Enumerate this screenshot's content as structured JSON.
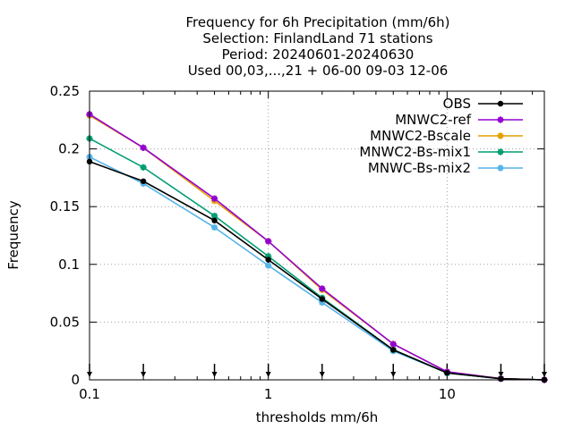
{
  "chart_data": {
    "type": "line",
    "title_lines": [
      "Frequency  for 6h Precipitation (mm/6h)",
      "Selection: FinlandLand     71 stations",
      "Period: 20240601-20240630",
      "Used 00,03,...,21 + 06-00 09-03 12-06"
    ],
    "xlabel": "thresholds mm/6h",
    "ylabel": "Frequency",
    "x_scale": "log",
    "xlim": [
      0.1,
      35
    ],
    "ylim": [
      0,
      0.25
    ],
    "grid": true,
    "legend_position": "top-right",
    "x_ticks": [
      {
        "value": 0.1,
        "label": "0.1"
      },
      {
        "value": 1,
        "label": "1"
      },
      {
        "value": 10,
        "label": "10"
      }
    ],
    "y_ticks": [
      {
        "value": 0,
        "label": "0"
      },
      {
        "value": 0.05,
        "label": "0.05"
      },
      {
        "value": 0.1,
        "label": "0.1"
      },
      {
        "value": 0.15,
        "label": "0.15"
      },
      {
        "value": 0.2,
        "label": "0.2"
      },
      {
        "value": 0.25,
        "label": "0.25"
      }
    ],
    "threshold_markers": [
      0.1,
      0.2,
      0.5,
      1,
      2,
      5,
      10,
      20,
      35
    ],
    "x": [
      0.1,
      0.2,
      0.5,
      1,
      2,
      5,
      10,
      20,
      35
    ],
    "series": [
      {
        "name": "OBS",
        "color": "#000000",
        "marker": "circle",
        "values": [
          0.189,
          0.172,
          0.138,
          0.104,
          0.07,
          0.026,
          0.006,
          0.001,
          0.0
        ]
      },
      {
        "name": "MNWC2-ref",
        "color": "#9400d3",
        "marker": "star",
        "values": [
          0.23,
          0.201,
          0.157,
          0.12,
          0.079,
          0.031,
          0.007,
          0.001,
          0.0
        ]
      },
      {
        "name": "MNWC2-Bscale",
        "color": "#e69f00",
        "marker": "star",
        "values": [
          0.229,
          0.201,
          0.155,
          0.12,
          0.078,
          0.031,
          0.007,
          0.001,
          0.0
        ]
      },
      {
        "name": "MNWC2-Bs-mix1",
        "color": "#009e73",
        "marker": "star",
        "values": [
          0.209,
          0.184,
          0.142,
          0.107,
          0.071,
          0.026,
          0.006,
          0.001,
          0.0
        ]
      },
      {
        "name": "MNWC-Bs-mix2",
        "color": "#56b4e9",
        "marker": "star",
        "values": [
          0.193,
          0.17,
          0.132,
          0.099,
          0.067,
          0.025,
          0.006,
          0.001,
          0.0
        ]
      }
    ]
  }
}
